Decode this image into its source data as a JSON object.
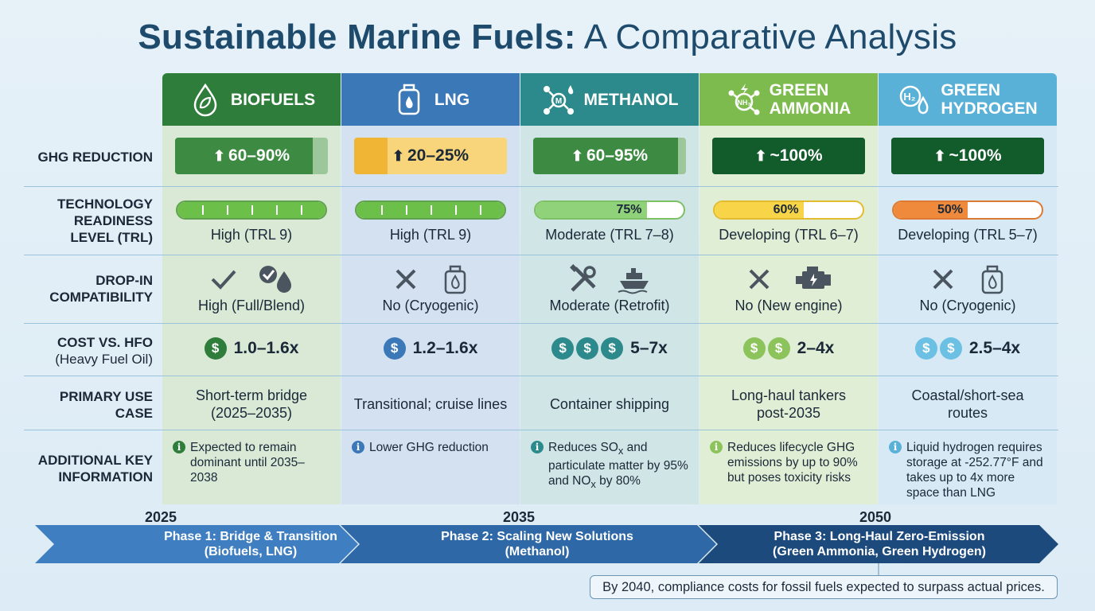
{
  "title": {
    "bold": "Sustainable Marine Fuels:",
    "rest": " A Comparative Analysis"
  },
  "rows": {
    "ghg": "GHG REDUCTION",
    "trl": [
      "TECHNOLOGY",
      "READINESS",
      "LEVEL (TRL)"
    ],
    "drop": [
      "DROP-IN",
      "COMPATIBILITY"
    ],
    "cost": "COST VS. HFO",
    "cost_sub": "(Heavy Fuel Oil)",
    "use": [
      "PRIMARY USE",
      "CASE"
    ],
    "info": [
      "ADDITIONAL KEY",
      "INFORMATION"
    ]
  },
  "columns": [
    {
      "name": "BIOFUELS",
      "icon": "leaf-drop-icon",
      "header_color": "#2f7d3a",
      "bg": "#d9e9d6",
      "ghg": "60–90%",
      "ghg_fill": 0.9,
      "ghg_color": "#3d8b42",
      "trl_fill": 1.0,
      "trl_pct": "",
      "trl_label": "High (TRL 9)",
      "trl_color": "#6cc04a",
      "drop_icons": [
        "check-icon",
        "check-drop-icon"
      ],
      "drop": "High (Full/Blend)",
      "coins": 1,
      "coin_color": "#2f7d3a",
      "cost": "1.0–1.6x",
      "use": [
        "Short-term bridge",
        "(2025–2035)"
      ],
      "info": "Expected to remain dominant until 2035–2038",
      "info_color": "#2f7d3a"
    },
    {
      "name": "LNG",
      "icon": "gas-tank-icon",
      "header_color": "#3a78b8",
      "bg": "#d3e1f0",
      "ghg": "20–25%",
      "ghg_fill": 0.22,
      "ghg_color": "#f6cc6a",
      "trl_fill": 1.0,
      "trl_pct": "",
      "trl_label": "High (TRL 9)",
      "trl_color": "#6cc04a",
      "drop_icons": [
        "cross-icon",
        "gas-tank-icon"
      ],
      "drop": "No (Cryogenic)",
      "coins": 1,
      "coin_color": "#3a78b8",
      "cost": "1.2–1.6x",
      "use": [
        "Transitional; cruise lines"
      ],
      "info": "Lower GHG reduction",
      "info_color": "#3a78b8"
    },
    {
      "name": "METHANOL",
      "icon": "molecule-icon",
      "header_color": "#2d8a8c",
      "bg": "#d0e5e6",
      "ghg": "60–95%",
      "ghg_fill": 0.95,
      "ghg_color": "#3d8b42",
      "trl_fill": 0.75,
      "trl_pct": "75%",
      "trl_label": "Moderate (TRL 7–8)",
      "trl_color": "#8fd27a",
      "drop_icons": [
        "wrench-icon",
        "ship-icon"
      ],
      "drop": "Moderate (Retrofit)",
      "coins": 3,
      "coin_color": "#2d8a8c",
      "cost": "5–7x",
      "use": [
        "Container shipping"
      ],
      "info": "Reduces SOx and particulate matter by 95% and NOx by 80%",
      "info_color": "#2d8a8c"
    },
    {
      "name": "GREEN AMMONIA",
      "icon": "ammonia-icon",
      "header_color": "#7dbb4f",
      "bg": "#e0eed6",
      "ghg": "~100%",
      "ghg_fill": 1.0,
      "ghg_color": "#125c2b",
      "trl_fill": 0.6,
      "trl_pct": "60%",
      "trl_label": "Developing (TRL 6–7)",
      "trl_color": "#f8d548",
      "drop_icons": [
        "cross-icon",
        "engine-icon"
      ],
      "drop": "No (New engine)",
      "coins": 2,
      "coin_color": "#8cc35a",
      "cost": "2–4x",
      "use": [
        "Long-haul tankers",
        "post-2035"
      ],
      "info": "Reduces lifecycle GHG emissions by up to 90% but poses toxicity risks",
      "info_color": "#8cc35a"
    },
    {
      "name": "GREEN HYDROGEN",
      "icon": "hydrogen-icon",
      "header_color": "#5ab1d8",
      "bg": "#d6e9f4",
      "ghg": "~100%",
      "ghg_fill": 1.0,
      "ghg_color": "#125c2b",
      "trl_fill": 0.5,
      "trl_pct": "50%",
      "trl_label": "Developing (TRL 5–7)",
      "trl_color": "#ef8a3c",
      "drop_icons": [
        "cross-icon",
        "gas-tank-icon"
      ],
      "drop": "No (Cryogenic)",
      "coins": 2,
      "coin_color": "#6cc0e3",
      "cost": "2.5–4x",
      "use": [
        "Coastal/short-sea",
        "routes"
      ],
      "info": "Liquid hydrogen requires storage at -252.77°F and takes up to 4x more space than LNG",
      "info_color": "#5ab1d8"
    }
  ],
  "timeline": {
    "years": [
      "2025",
      "2035",
      "2050"
    ],
    "phases": [
      {
        "line1": "Phase 1: Bridge & Transition",
        "line2": "(Biofuels, LNG)",
        "color": "#3f7fc1"
      },
      {
        "line1": "Phase 2: Scaling New Solutions",
        "line2": "(Methanol)",
        "color": "#2e68a6"
      },
      {
        "line1": "Phase 3: Long-Haul Zero-Emission",
        "line2": "(Green Ammonia, Green Hydrogen)",
        "color": "#1d4a7d"
      }
    ]
  },
  "note": "By 2040, compliance costs for fossil fuels expected to surpass actual prices."
}
